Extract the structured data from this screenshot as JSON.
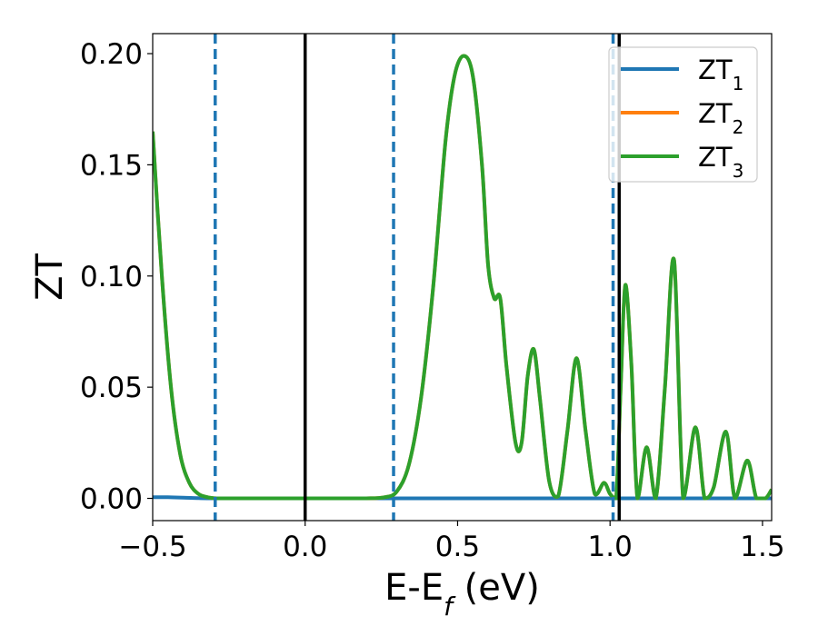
{
  "chart_data": {
    "type": "line",
    "xlabel": "E-E",
    "xlabel_subscript": "f",
    "xlabel_unit": " (eV)",
    "ylabel": "ZT",
    "xlim": [
      -0.5,
      1.53
    ],
    "ylim": [
      -0.01,
      0.209
    ],
    "grid": false,
    "legend_position": "top-right",
    "xticks": [
      -0.5,
      0.0,
      0.5,
      1.0,
      1.5
    ],
    "xtick_labels": [
      "−0.5",
      "0.0",
      "0.5",
      "1.0",
      "1.5"
    ],
    "yticks": [
      0.0,
      0.05,
      0.1,
      0.15,
      0.2
    ],
    "ytick_labels": [
      "0.00",
      "0.05",
      "0.10",
      "0.15",
      "0.20"
    ],
    "vlines_solid": [
      0.0,
      1.03
    ],
    "vlines_dashed": [
      -0.295,
      0.29,
      1.01
    ],
    "series": [
      {
        "name": "ZT",
        "subscript": "1",
        "color": "#1f77b4",
        "x": [
          -0.5,
          -0.45,
          -0.4,
          -0.35,
          -0.3,
          -0.2,
          0.0,
          0.2,
          0.5,
          1.0,
          1.53
        ],
        "y": [
          0.0005,
          0.0005,
          0.0003,
          0.0001,
          0.0,
          0.0,
          0.0,
          0.0,
          0.0,
          0.0,
          0.0
        ]
      },
      {
        "name": "ZT",
        "subscript": "2",
        "color": "#ff7f0e",
        "x": [
          -0.5,
          -0.47,
          -0.44,
          -0.41,
          -0.38,
          -0.35,
          -0.32,
          -0.29,
          -0.25,
          -0.2,
          -0.1,
          0.0,
          0.1,
          0.2,
          0.26,
          0.3,
          0.34,
          0.38,
          0.42,
          0.46,
          0.49,
          0.52,
          0.55,
          0.58,
          0.6,
          0.62,
          0.64,
          0.66,
          0.69,
          0.71,
          0.73,
          0.75,
          0.77,
          0.8,
          0.83,
          0.86,
          0.89,
          0.92,
          0.95,
          0.98,
          1.0,
          1.02,
          1.035,
          1.05,
          1.07,
          1.09,
          1.12,
          1.15,
          1.18,
          1.21,
          1.24,
          1.28,
          1.31,
          1.34,
          1.38,
          1.41,
          1.45,
          1.48,
          1.51,
          1.53
        ],
        "y": [
          0.165,
          0.1,
          0.05,
          0.02,
          0.007,
          0.002,
          0.0005,
          0.0,
          0.0,
          0.0,
          0.0,
          0.0,
          0.0,
          0.0,
          0.0005,
          0.003,
          0.015,
          0.045,
          0.095,
          0.16,
          0.19,
          0.199,
          0.19,
          0.15,
          0.105,
          0.09,
          0.09,
          0.06,
          0.025,
          0.025,
          0.055,
          0.067,
          0.045,
          0.008,
          0.001,
          0.03,
          0.063,
          0.03,
          0.002,
          0.007,
          0.002,
          0.0,
          0.05,
          0.096,
          0.06,
          0.0,
          0.023,
          0.0,
          0.05,
          0.107,
          0.0,
          0.032,
          0.0,
          0.005,
          0.03,
          0.0,
          0.017,
          0.0,
          0.0,
          0.004
        ]
      },
      {
        "name": "ZT",
        "subscript": "3",
        "color": "#2ca02c",
        "x": [
          -0.5,
          -0.47,
          -0.44,
          -0.41,
          -0.38,
          -0.35,
          -0.32,
          -0.29,
          -0.25,
          -0.2,
          -0.1,
          0.0,
          0.1,
          0.2,
          0.26,
          0.3,
          0.34,
          0.38,
          0.42,
          0.46,
          0.49,
          0.52,
          0.55,
          0.58,
          0.6,
          0.62,
          0.64,
          0.66,
          0.69,
          0.71,
          0.73,
          0.75,
          0.77,
          0.8,
          0.83,
          0.86,
          0.89,
          0.92,
          0.95,
          0.98,
          1.0,
          1.02,
          1.035,
          1.05,
          1.07,
          1.09,
          1.12,
          1.15,
          1.18,
          1.21,
          1.24,
          1.28,
          1.31,
          1.34,
          1.38,
          1.41,
          1.45,
          1.48,
          1.51,
          1.53
        ],
        "y": [
          0.165,
          0.1,
          0.05,
          0.02,
          0.007,
          0.002,
          0.0005,
          0.0,
          0.0,
          0.0,
          0.0,
          0.0,
          0.0,
          0.0,
          0.0005,
          0.003,
          0.015,
          0.045,
          0.095,
          0.16,
          0.19,
          0.199,
          0.19,
          0.15,
          0.105,
          0.09,
          0.09,
          0.06,
          0.025,
          0.025,
          0.055,
          0.067,
          0.045,
          0.008,
          0.001,
          0.03,
          0.063,
          0.03,
          0.002,
          0.007,
          0.002,
          0.0,
          0.05,
          0.096,
          0.06,
          0.0,
          0.023,
          0.0,
          0.05,
          0.107,
          0.0,
          0.032,
          0.0,
          0.005,
          0.03,
          0.0,
          0.017,
          0.0,
          0.0,
          0.004
        ]
      }
    ]
  }
}
